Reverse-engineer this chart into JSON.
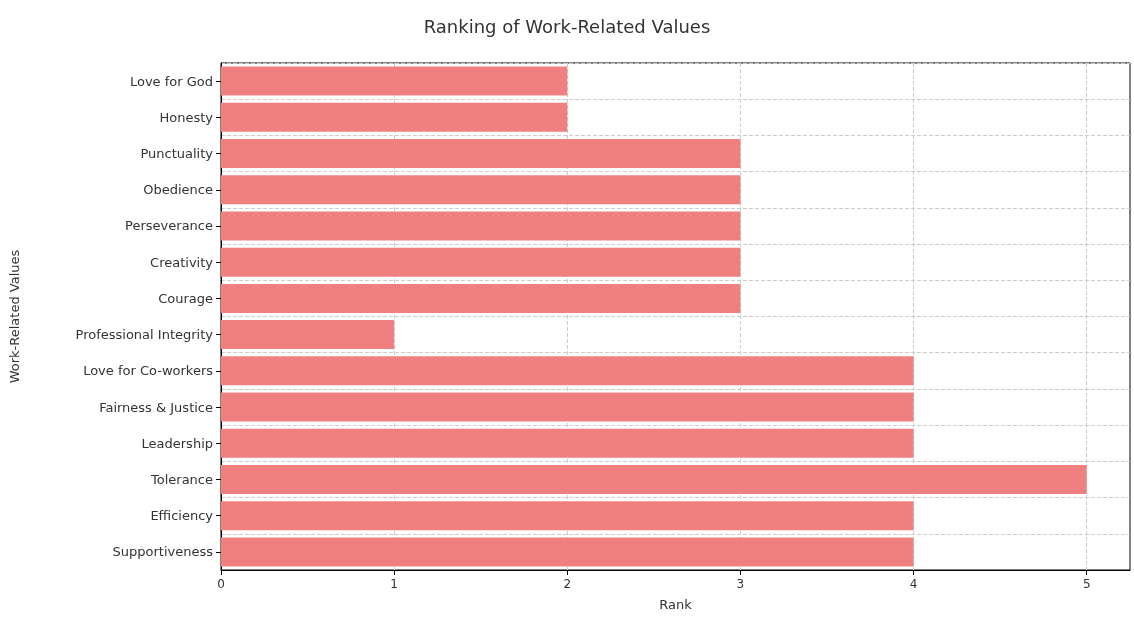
{
  "chart_data": {
    "type": "bar",
    "orientation": "horizontal",
    "title": "Ranking of Work-Related Values",
    "xlabel": "Rank",
    "ylabel": "Work-Related Values",
    "categories": [
      "Love for God",
      "Honesty",
      "Punctuality",
      "Obedience",
      "Perseverance",
      "Creativity",
      "Courage",
      "Professional Integrity",
      "Love for Co-workers",
      "Fairness & Justice",
      "Leadership",
      "Tolerance",
      "Efficiency",
      "Supportiveness"
    ],
    "values": [
      2,
      2,
      3,
      3,
      3,
      3,
      3,
      1,
      4,
      4,
      4,
      5,
      4,
      4
    ],
    "color": "#f08080",
    "xlim": [
      0,
      5.25
    ],
    "xticks": [
      0,
      1,
      2,
      3,
      4,
      5
    ],
    "grid": true
  }
}
